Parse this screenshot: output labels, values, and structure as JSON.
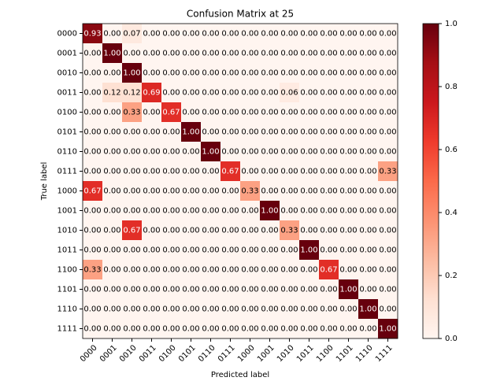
{
  "chart_data": {
    "type": "heatmap",
    "title": "Confusion Matrix at 25",
    "x_label": "Predicted label",
    "y_label": "True label",
    "x_categories": [
      "0000",
      "0001",
      "0010",
      "0011",
      "0100",
      "0101",
      "0110",
      "0111",
      "1000",
      "1001",
      "1010",
      "1011",
      "1100",
      "1101",
      "1110",
      "1111"
    ],
    "y_categories": [
      "0000",
      "0001",
      "0010",
      "0011",
      "0100",
      "0101",
      "0110",
      "0111",
      "1000",
      "1001",
      "1010",
      "1011",
      "1100",
      "1101",
      "1110",
      "1111"
    ],
    "values": [
      [
        0.93,
        0,
        0.07,
        0,
        0,
        0,
        0,
        0,
        0,
        0,
        0,
        0,
        0,
        0,
        0,
        0
      ],
      [
        0,
        1,
        0,
        0,
        0,
        0,
        0,
        0,
        0,
        0,
        0,
        0,
        0,
        0,
        0,
        0
      ],
      [
        0,
        0,
        1,
        0,
        0,
        0,
        0,
        0,
        0,
        0,
        0,
        0,
        0,
        0,
        0,
        0
      ],
      [
        0,
        0.12,
        0.12,
        0.69,
        0,
        0,
        0,
        0,
        0,
        0,
        0.06,
        0,
        0,
        0,
        0,
        0
      ],
      [
        0,
        0,
        0.33,
        0,
        0.67,
        0,
        0,
        0,
        0,
        0,
        0,
        0,
        0,
        0,
        0,
        0
      ],
      [
        0,
        0,
        0,
        0,
        0,
        1,
        0,
        0,
        0,
        0,
        0,
        0,
        0,
        0,
        0,
        0
      ],
      [
        0,
        0,
        0,
        0,
        0,
        0,
        1,
        0,
        0,
        0,
        0,
        0,
        0,
        0,
        0,
        0
      ],
      [
        0,
        0,
        0,
        0,
        0,
        0,
        0,
        0.67,
        0,
        0,
        0,
        0,
        0,
        0,
        0,
        0.33
      ],
      [
        0.67,
        0,
        0,
        0,
        0,
        0,
        0,
        0,
        0.33,
        0,
        0,
        0,
        0,
        0,
        0,
        0
      ],
      [
        0,
        0,
        0,
        0,
        0,
        0,
        0,
        0,
        0,
        1,
        0,
        0,
        0,
        0,
        0,
        0
      ],
      [
        0,
        0,
        0.67,
        0,
        0,
        0,
        0,
        0,
        0,
        0,
        0.33,
        0,
        0,
        0,
        0,
        0
      ],
      [
        0,
        0,
        0,
        0,
        0,
        0,
        0,
        0,
        0,
        0,
        0,
        1,
        0,
        0,
        0,
        0
      ],
      [
        0.33,
        0,
        0,
        0,
        0,
        0,
        0,
        0,
        0,
        0,
        0,
        0,
        0.67,
        0,
        0,
        0
      ],
      [
        0,
        0,
        0,
        0,
        0,
        0,
        0,
        0,
        0,
        0,
        0,
        0,
        0,
        1,
        0,
        0
      ],
      [
        0,
        0,
        0,
        0,
        0,
        0,
        0,
        0,
        0,
        0,
        0,
        0,
        0,
        0,
        1,
        0
      ],
      [
        0,
        0,
        0,
        0,
        0,
        0,
        0,
        0,
        0,
        0,
        0,
        0,
        0,
        0,
        0,
        1
      ]
    ],
    "value_labels": [
      [
        "0.93",
        "0.00",
        "0.07",
        "0.00",
        "0.00",
        "0.00",
        "0.00",
        "0.00",
        "0.00",
        "0.00",
        "0.00",
        "0.00",
        "0.00",
        "0.00",
        "0.00",
        "0.00"
      ],
      [
        "0.00",
        "1.00",
        "0.00",
        "0.00",
        "0.00",
        "0.00",
        "0.00",
        "0.00",
        "0.00",
        "0.00",
        "0.00",
        "0.00",
        "0.00",
        "0.00",
        "0.00",
        "0.00"
      ],
      [
        "0.00",
        "0.00",
        "1.00",
        "0.00",
        "0.00",
        "0.00",
        "0.00",
        "0.00",
        "0.00",
        "0.00",
        "0.00",
        "0.00",
        "0.00",
        "0.00",
        "0.00",
        "0.00"
      ],
      [
        "0.00",
        "0.12",
        "0.12",
        "0.69",
        "0.00",
        "0.00",
        "0.00",
        "0.00",
        "0.00",
        "0.00",
        "0.06",
        "0.00",
        "0.00",
        "0.00",
        "0.00",
        "0.00"
      ],
      [
        "0.00",
        "0.00",
        "0.33",
        "0.00",
        "0.67",
        "0.00",
        "0.00",
        "0.00",
        "0.00",
        "0.00",
        "0.00",
        "0.00",
        "0.00",
        "0.00",
        "0.00",
        "0.00"
      ],
      [
        "0.00",
        "0.00",
        "0.00",
        "0.00",
        "0.00",
        "1.00",
        "0.00",
        "0.00",
        "0.00",
        "0.00",
        "0.00",
        "0.00",
        "0.00",
        "0.00",
        "0.00",
        "0.00"
      ],
      [
        "0.00",
        "0.00",
        "0.00",
        "0.00",
        "0.00",
        "0.00",
        "1.00",
        "0.00",
        "0.00",
        "0.00",
        "0.00",
        "0.00",
        "0.00",
        "0.00",
        "0.00",
        "0.00"
      ],
      [
        "0.00",
        "0.00",
        "0.00",
        "0.00",
        "0.00",
        "0.00",
        "0.00",
        "0.67",
        "0.00",
        "0.00",
        "0.00",
        "0.00",
        "0.00",
        "0.00",
        "0.00",
        "0.33"
      ],
      [
        "0.67",
        "0.00",
        "0.00",
        "0.00",
        "0.00",
        "0.00",
        "0.00",
        "0.00",
        "0.33",
        "0.00",
        "0.00",
        "0.00",
        "0.00",
        "0.00",
        "0.00",
        "0.00"
      ],
      [
        "0.00",
        "0.00",
        "0.00",
        "0.00",
        "0.00",
        "0.00",
        "0.00",
        "0.00",
        "0.00",
        "1.00",
        "0.00",
        "0.00",
        "0.00",
        "0.00",
        "0.00",
        "0.00"
      ],
      [
        "0.00",
        "0.00",
        "0.67",
        "0.00",
        "0.00",
        "0.00",
        "0.00",
        "0.00",
        "0.00",
        "0.00",
        "0.33",
        "0.00",
        "0.00",
        "0.00",
        "0.00",
        "0.00"
      ],
      [
        "0.00",
        "0.00",
        "0.00",
        "0.00",
        "0.00",
        "0.00",
        "0.00",
        "0.00",
        "0.00",
        "0.00",
        "0.00",
        "1.00",
        "0.00",
        "0.00",
        "0.00",
        "0.00"
      ],
      [
        "0.33",
        "0.00",
        "0.00",
        "0.00",
        "0.00",
        "0.00",
        "0.00",
        "0.00",
        "0.00",
        "0.00",
        "0.00",
        "0.00",
        "0.67",
        "0.00",
        "0.00",
        "0.00"
      ],
      [
        "0.00",
        "0.00",
        "0.00",
        "0.00",
        "0.00",
        "0.00",
        "0.00",
        "0.00",
        "0.00",
        "0.00",
        "0.00",
        "0.00",
        "0.00",
        "1.00",
        "0.00",
        "0.00"
      ],
      [
        "0.00",
        "0.00",
        "0.00",
        "0.00",
        "0.00",
        "0.00",
        "0.00",
        "0.00",
        "0.00",
        "0.00",
        "0.00",
        "0.00",
        "0.00",
        "0.00",
        "1.00",
        "0.00"
      ],
      [
        "0.00",
        "0.00",
        "0.00",
        "0.00",
        "0.00",
        "0.00",
        "0.00",
        "0.00",
        "0.00",
        "0.00",
        "0.00",
        "0.00",
        "0.00",
        "0.00",
        "0.00",
        "1.00"
      ]
    ],
    "clim": [
      0,
      1
    ],
    "cticks": [
      {
        "value": 0,
        "label": "0.0"
      },
      {
        "value": 0.2,
        "label": "0.2"
      },
      {
        "value": 0.4,
        "label": "0.4"
      },
      {
        "value": 0.6,
        "label": "0.6"
      },
      {
        "value": 0.8,
        "label": "0.8"
      },
      {
        "value": 1,
        "label": "1.0"
      }
    ],
    "colormap": [
      "#fff5f0",
      "#fee0d2",
      "#fcbba1",
      "#fc9272",
      "#fb6a4a",
      "#ef3b2c",
      "#cb181d",
      "#a50f15",
      "#67000d"
    ]
  }
}
